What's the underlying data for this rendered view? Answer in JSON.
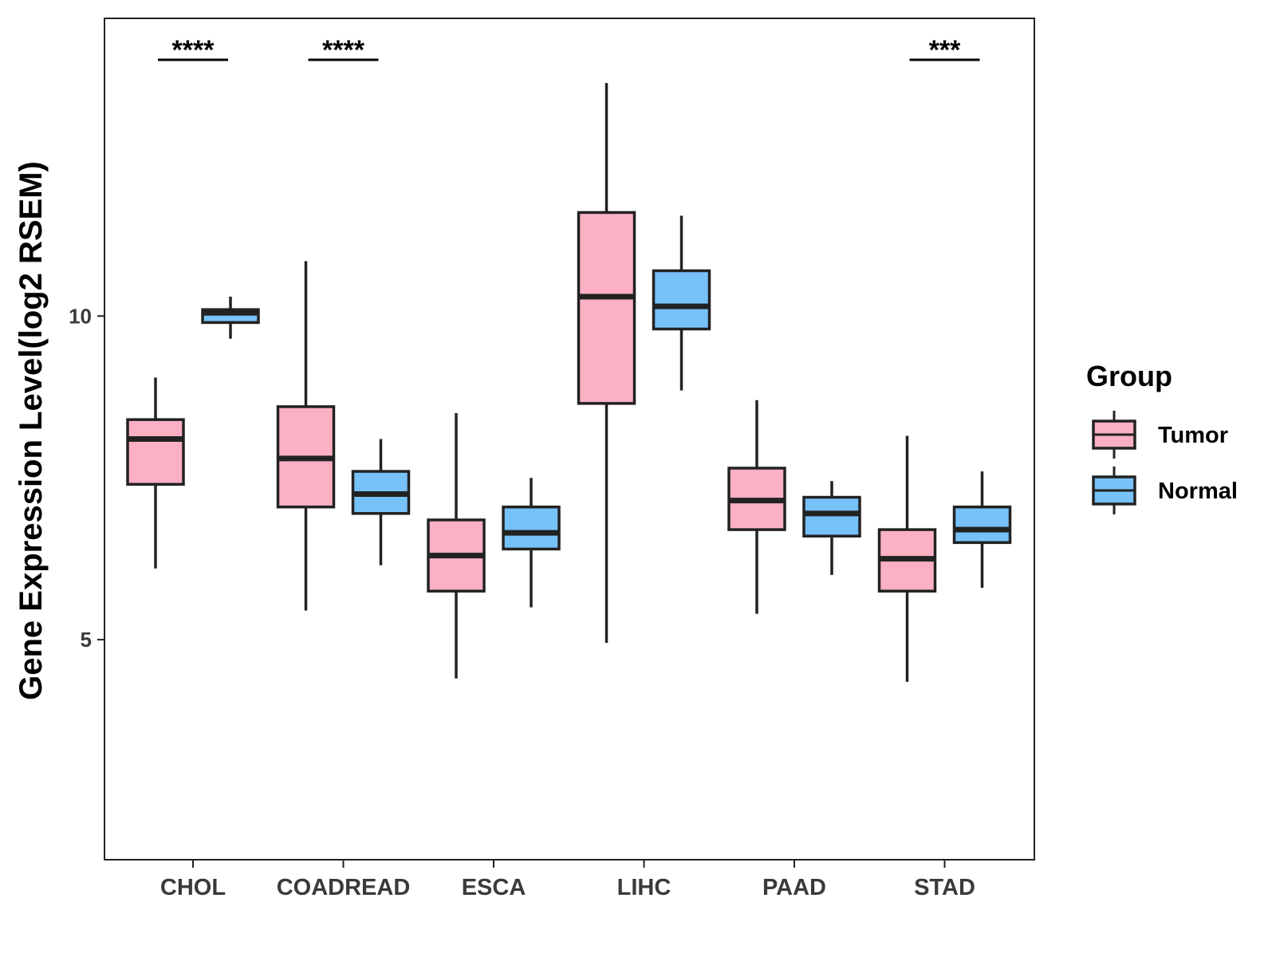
{
  "chart_data": {
    "type": "boxplot",
    "title": "",
    "xlabel": "",
    "ylabel": "Gene Expression Level(log2 RSEM)",
    "ylim": [
      1.6,
      14.6
    ],
    "yticks": [
      5,
      10
    ],
    "ytick_labels": [
      "5",
      "10"
    ],
    "grid": false,
    "legend": {
      "title": "Group",
      "position": "right"
    },
    "categories": [
      "CHOL",
      "COADREAD",
      "ESCA",
      "LIHC",
      "PAAD",
      "STAD"
    ],
    "series": [
      {
        "name": "Tumor",
        "color": "#FBB0C3",
        "boxes": [
          {
            "min": 6.1,
            "q1": 7.4,
            "median": 8.1,
            "q3": 8.4,
            "max": 9.05
          },
          {
            "min": 5.45,
            "q1": 7.05,
            "median": 7.8,
            "q3": 8.6,
            "max": 10.85
          },
          {
            "min": 4.4,
            "q1": 5.75,
            "median": 6.3,
            "q3": 6.85,
            "max": 8.5
          },
          {
            "min": 4.95,
            "q1": 8.65,
            "median": 10.3,
            "q3": 11.6,
            "max": 13.6
          },
          {
            "min": 5.4,
            "q1": 6.7,
            "median": 7.15,
            "q3": 7.65,
            "max": 8.7
          },
          {
            "min": 4.35,
            "q1": 5.75,
            "median": 6.25,
            "q3": 6.7,
            "max": 8.15
          }
        ]
      },
      {
        "name": "Normal",
        "color": "#77C1F9",
        "boxes": [
          {
            "min": 9.65,
            "q1": 9.9,
            "median": 10.05,
            "q3": 10.1,
            "max": 10.3
          },
          {
            "min": 6.15,
            "q1": 6.95,
            "median": 7.25,
            "q3": 7.6,
            "max": 8.1
          },
          {
            "min": 5.5,
            "q1": 6.4,
            "median": 6.65,
            "q3": 7.05,
            "max": 7.5
          },
          {
            "min": 8.85,
            "q1": 9.8,
            "median": 10.15,
            "q3": 10.7,
            "max": 11.55
          },
          {
            "min": 6.0,
            "q1": 6.6,
            "median": 6.95,
            "q3": 7.2,
            "max": 7.45
          },
          {
            "min": 5.8,
            "q1": 6.5,
            "median": 6.7,
            "q3": 7.05,
            "max": 7.6
          }
        ]
      }
    ],
    "significance": [
      {
        "category": "CHOL",
        "label": "****"
      },
      {
        "category": "COADREAD",
        "label": "****"
      },
      {
        "category": "STAD",
        "label": "***"
      }
    ]
  }
}
